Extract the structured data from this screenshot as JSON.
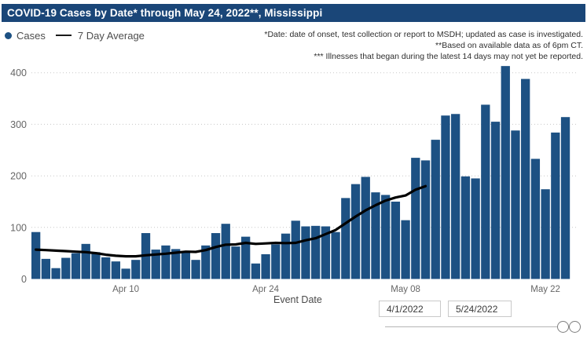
{
  "header": {
    "title": "COVID-19 Cases by Date* through May 24, 2022**, Mississippi"
  },
  "legend": {
    "cases_label": "Cases",
    "avg_label": "7 Day Average"
  },
  "notes": {
    "lines": [
      "*Date: date of onset, test collection or report to MSDH; updated as case is investigated.",
      "**Based on available data as of 6pm CT.",
      "*** Illnesses that began during the latest 14 days may not yet be reported."
    ]
  },
  "chart_data": {
    "type": "bar",
    "title": "COVID-19 Cases by Date* through May 24, 2022**, Mississippi",
    "xlabel": "Event Date",
    "ylabel": "",
    "ylim": [
      0,
      430
    ],
    "yticks": [
      0,
      100,
      200,
      300,
      400
    ],
    "grid": "horizontal-dotted",
    "legend_position": "top-left",
    "dates": [
      "Apr 1",
      "Apr 2",
      "Apr 3",
      "Apr 4",
      "Apr 5",
      "Apr 6",
      "Apr 7",
      "Apr 8",
      "Apr 9",
      "Apr 10",
      "Apr 11",
      "Apr 12",
      "Apr 13",
      "Apr 14",
      "Apr 15",
      "Apr 16",
      "Apr 17",
      "Apr 18",
      "Apr 19",
      "Apr 20",
      "Apr 21",
      "Apr 22",
      "Apr 23",
      "Apr 24",
      "Apr 25",
      "Apr 26",
      "Apr 27",
      "Apr 28",
      "Apr 29",
      "Apr 30",
      "May 1",
      "May 2",
      "May 3",
      "May 4",
      "May 5",
      "May 6",
      "May 7",
      "May 8",
      "May 9",
      "May 10",
      "May 11",
      "May 12",
      "May 13",
      "May 14",
      "May 15",
      "May 16",
      "May 17",
      "May 18",
      "May 19",
      "May 20",
      "May 21",
      "May 22",
      "May 23",
      "May 24"
    ],
    "xticks": [
      {
        "index": 9,
        "label": "Apr 10"
      },
      {
        "index": 23,
        "label": "Apr 24"
      },
      {
        "index": 37,
        "label": "May 08"
      },
      {
        "index": 51,
        "label": "May 22"
      }
    ],
    "series": [
      {
        "name": "Cases",
        "type": "bar",
        "color": "#1d5183",
        "values": [
          91,
          39,
          21,
          41,
          50,
          68,
          52,
          42,
          34,
          20,
          37,
          89,
          57,
          65,
          58,
          51,
          37,
          65,
          89,
          107,
          63,
          82,
          30,
          48,
          67,
          88,
          113,
          102,
          103,
          102,
          91,
          157,
          184,
          198,
          168,
          163,
          150,
          114,
          235,
          230,
          270,
          317,
          320,
          199,
          195,
          338,
          305,
          413,
          288,
          388,
          233,
          174,
          284,
          314
        ]
      },
      {
        "name": "7 Day Average",
        "type": "line",
        "color": "#000000",
        "values": [
          57,
          56,
          55,
          54,
          53,
          52,
          50,
          47,
          45,
          44,
          44,
          46,
          47.5,
          49,
          51,
          53,
          52.5,
          56,
          62,
          66.5,
          67,
          70,
          68,
          69,
          70,
          69.5,
          70,
          75,
          79,
          87,
          95,
          108,
          121,
          133,
          143,
          152,
          158,
          162,
          173,
          180
        ]
      }
    ]
  },
  "filters": {
    "axis_label": "Event Date",
    "start_date": "4/1/2022",
    "end_date": "5/24/2022"
  },
  "colors": {
    "header_bg": "#1a4678",
    "bar": "#1d5183",
    "avg_line": "#000000",
    "grid": "#c8c8c8",
    "axis_text": "#666666"
  }
}
